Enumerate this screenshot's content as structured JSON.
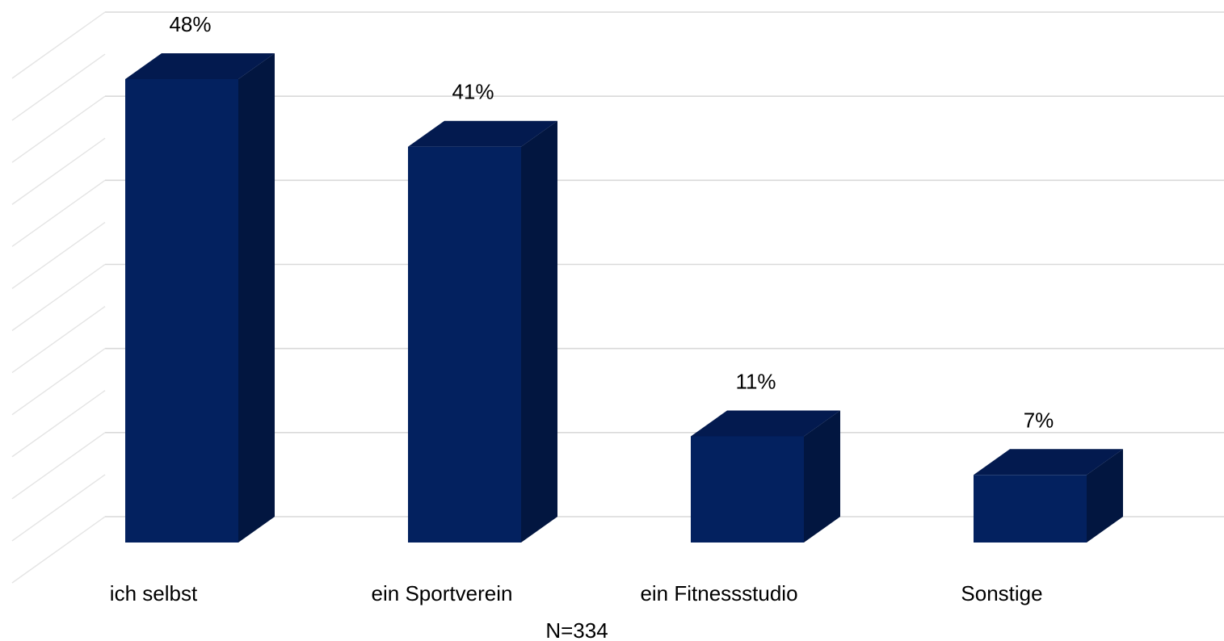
{
  "chart_data": {
    "type": "bar",
    "three_d": true,
    "categories": [
      "ich selbst",
      "ein Sportverein",
      "ein Fitnessstudio",
      "Sonstige"
    ],
    "values": [
      48,
      41,
      11,
      7
    ],
    "value_labels": [
      "48%",
      "41%",
      "11%",
      "7%"
    ],
    "unit": "%",
    "ylim": [
      0,
      55
    ],
    "grid": true,
    "legend": "none",
    "note": "N=334",
    "colors": {
      "front": "#03215f",
      "top": "#031a4f",
      "side": "#021640",
      "grid": "#d9d9d9"
    }
  }
}
